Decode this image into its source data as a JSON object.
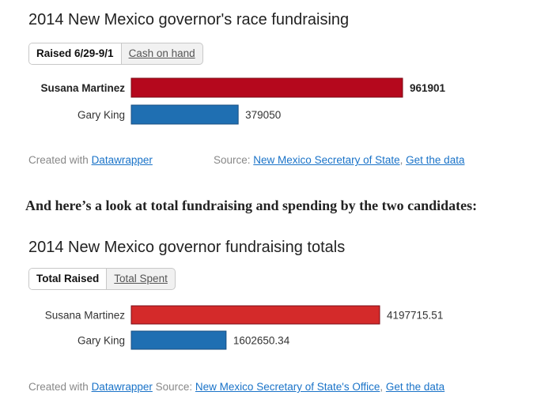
{
  "charts": [
    {
      "title": "2014 New Mexico governor's race fundraising",
      "tabs": [
        "Raised 6/29-9/1",
        "Cash on hand"
      ],
      "created_with": "Created with",
      "created_link": "Datawrapper",
      "source_label": "Source:",
      "source_link": "New Mexico Secretary of State",
      "separator": ",",
      "data_link": "Get the data"
    },
    {
      "title": "2014 New Mexico governor fundraising totals",
      "tabs": [
        "Total Raised",
        "Total Spent"
      ],
      "created_with": "Created with",
      "created_link": "Datawrapper",
      "source_label": "Source:",
      "source_link": "New Mexico Secretary of State's Office",
      "separator": ",",
      "data_link": "Get the data"
    }
  ],
  "paragraph": "And here’s a look at total fundraising and spending by the two candidates:",
  "chart_data": [
    {
      "type": "bar",
      "orientation": "horizontal",
      "title": "2014 New Mexico governor's race fundraising",
      "categories": [
        "Susana Martinez",
        "Gary King"
      ],
      "values": [
        961901,
        379050
      ],
      "value_labels": [
        "961901",
        "379050"
      ],
      "colors": [
        "#b5081d",
        "#1f6fb2"
      ],
      "xlim": [
        0,
        961901
      ]
    },
    {
      "type": "bar",
      "orientation": "horizontal",
      "title": "2014 New Mexico governor fundraising totals",
      "categories": [
        "Susana Martinez",
        "Gary King"
      ],
      "values": [
        4197715.51,
        1602650.34
      ],
      "value_labels": [
        "4197715.51",
        "1602650.34"
      ],
      "colors": [
        "#d42a2a",
        "#1f6fb2"
      ],
      "xlim": [
        0,
        4197715.51
      ]
    }
  ]
}
